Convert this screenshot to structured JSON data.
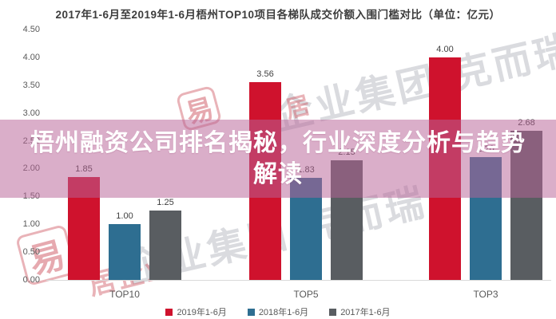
{
  "title": "2017年1-6月至2019年1-6月梧州TOP10项目各梯队成交价额入围门槛对比（单位：亿元）",
  "overlay": {
    "line1": "梧州融资公司排名揭秘，行业深度分析与趋势",
    "line2": "解读"
  },
  "chart_data": {
    "type": "bar",
    "title": "2017年1-6月至2019年1-6月梧州TOP10项目各梯队成交价额入围门槛对比",
    "unit": "亿元",
    "categories": [
      "TOP10",
      "TOP5",
      "TOP3"
    ],
    "series": [
      {
        "name": "2019年1-6月",
        "color": "#cf122d",
        "values": [
          1.85,
          3.56,
          4.0
        ],
        "labels": [
          "1.85",
          "3.56",
          "4.00"
        ]
      },
      {
        "name": "2018年1-6月",
        "color": "#2e6e91",
        "values": [
          1.0,
          1.83,
          2.2
        ],
        "labels": [
          "1.00",
          "1.83",
          "2.20"
        ]
      },
      {
        "name": "2017年1-6月",
        "color": "#595d61",
        "values": [
          1.25,
          2.15,
          2.68
        ],
        "labels": [
          "1.25",
          "2.15",
          "2.68"
        ]
      }
    ],
    "ylim": [
      0,
      4.5
    ],
    "ytick_step": 0.5,
    "yticks": [
      "4.50",
      "4.00",
      "3.50",
      "3.00",
      "2.50",
      "2.00",
      "1.50",
      "1.00",
      "0.50",
      "0.00"
    ],
    "grid": false,
    "legend_position": "bottom"
  },
  "watermarks": {
    "brand_text": "企业集团·克而瑞",
    "seal_char": "易",
    "script_fragment_a": "居企业",
    "script_fragment_b": "居"
  },
  "colors": {
    "band": "#b96398",
    "band_text": "#ffffff",
    "axis_text": "#595959",
    "label_text": "#404040",
    "baseline": "#d9d9d9",
    "title_text": "#3d3d3d"
  }
}
